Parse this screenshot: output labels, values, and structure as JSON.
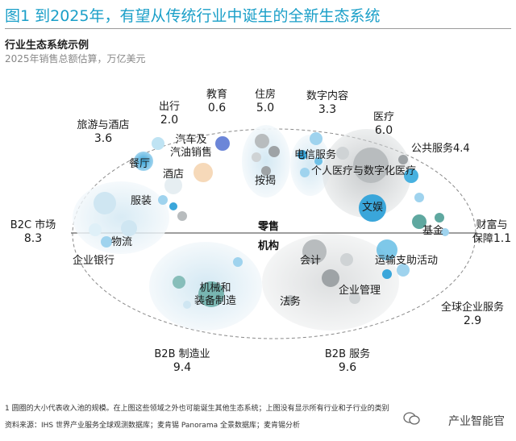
{
  "title": "图1 到2025年，有望从传统行业中诞生的全新生态系统",
  "subtitle": "行业生态系统示例",
  "unit_note": "2025年销售总额估算，万亿美元",
  "center": {
    "top_label": "零售",
    "bottom_label": "机构"
  },
  "outer_sectors": [
    {
      "name": "旅游与酒店",
      "value": "3.6"
    },
    {
      "name": "出行",
      "value": "2.0"
    },
    {
      "name": "教育",
      "value": "0.6"
    },
    {
      "name": "住房",
      "value": "5.0"
    },
    {
      "name": "数字内容",
      "value": "3.3"
    },
    {
      "name": "医疗",
      "value": "6.0"
    },
    {
      "name": "公共服务",
      "value": "4.4"
    },
    {
      "name": "B2C 市场",
      "value": "8.3"
    },
    {
      "name": "财富与保障",
      "value": "1.1"
    },
    {
      "name": "全球企业服务",
      "value": "2.9"
    },
    {
      "name": "B2B 制造业",
      "value": "9.4"
    },
    {
      "name": "B2B 服务",
      "value": "9.6"
    }
  ],
  "labels_top": {
    "wealth_line1": "财富与",
    "wealth_line2": "保障",
    "wealth_value": "1.1"
  },
  "inner_labels": {
    "canting": "餐厅",
    "jiudian": "酒店",
    "qiche_line1": "汽车及",
    "qiche_line2": "汽油销售",
    "fuzhuang": "服装",
    "wuliu": "物流",
    "qiye_yinhang": "企业银行",
    "anjie": "按揭",
    "dianxin": "电信服务",
    "geren_yiliao": "个人医疗与数字化医疗",
    "wenyu": "文娱",
    "jijin": "基金",
    "kuaiji": "会计",
    "yunshu": "运输支助活动",
    "qiye_guanli": "企业管理",
    "falv": "法务",
    "jixie_line1": "机械和",
    "jixie_line2": "装备制造"
  },
  "footnote": "1 圆圈的大小代表收入池的规模。在上图这些领域之外也可能诞生其他生态系统；上图没有显示所有行业和子行业的类别",
  "source": "资料来源：IHS 世界产业服务全球观测数据库；麦肯锡 Panorama 全景数据库；麦肯锡分析",
  "watermark": "产业智能官",
  "colors": {
    "accent": "#1a9fc8",
    "bubble_blue": "#47b1e0",
    "bubble_gray": "#b8bcbe",
    "bubble_teal": "#5fa8a0",
    "bubble_orange": "#f0b27a"
  }
}
